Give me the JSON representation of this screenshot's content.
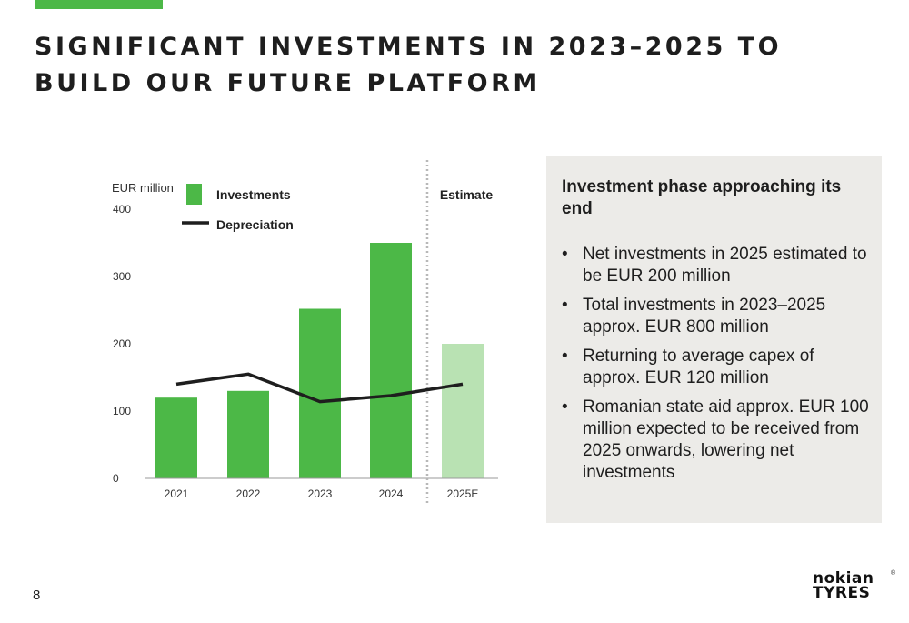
{
  "page": {
    "title": "SIGNIFICANT INVESTMENTS IN 2023–2025 TO BUILD OUR FUTURE PLATFORM",
    "page_number": "8",
    "logo_text": "nokian TYRES"
  },
  "colors": {
    "accent_green": "#4cb847",
    "estimate_green": "#b9e2b3",
    "line_black": "#1e1e1e",
    "panel_bg": "#ecebe8"
  },
  "chart_data": {
    "type": "bar",
    "unit_label": "EUR million",
    "estimate_label": "Estimate",
    "categories": [
      "2021",
      "2022",
      "2023",
      "2024",
      "2025E"
    ],
    "estimate_from_index": 4,
    "series": [
      {
        "name": "Investments",
        "kind": "bar",
        "values": [
          120,
          130,
          252,
          350,
          200
        ]
      },
      {
        "name": "Depreciation",
        "kind": "line",
        "values": [
          140,
          155,
          114,
          123,
          140
        ]
      }
    ],
    "ylim": [
      0,
      400
    ],
    "yticks": [
      0,
      100,
      200,
      300,
      400
    ],
    "grid": false,
    "legend_position": "top-left"
  },
  "panel": {
    "heading": "Investment phase approaching its end",
    "bullets": [
      "Net investments in 2025 estimated to be EUR 200 million",
      "Total investments in 2023–2025 approx. EUR 800 million",
      "Returning to average capex of approx. EUR 120 million",
      "Romanian state aid approx. EUR 100 million expected to be received from 2025 onwards, lowering net investments"
    ],
    "bullet_glyph": "•"
  }
}
